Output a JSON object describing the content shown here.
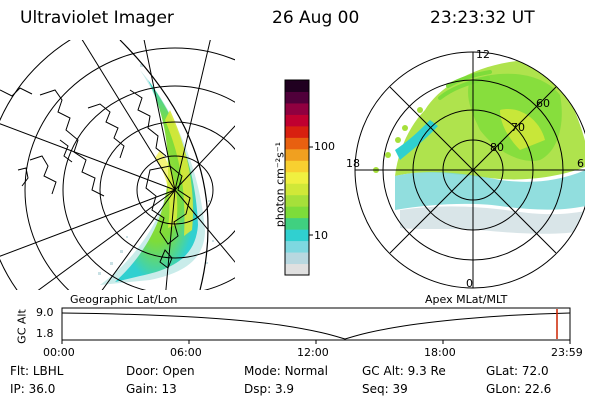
{
  "header": {
    "title": "Ultraviolet Imager",
    "date": "26 Aug 00",
    "time": "23:23:32 UT"
  },
  "left_panel": {
    "caption": "Geographic Lat/Lon"
  },
  "right_panel": {
    "caption": "Apex MLat/MLT",
    "mlt_labels": [
      "12",
      "18",
      "6",
      "0"
    ],
    "lat_labels": [
      "60",
      "70",
      "80"
    ]
  },
  "colorbar": {
    "unit_label": "photon cm⁻²s⁻¹",
    "tick_labels": [
      "100",
      "10"
    ],
    "colors": [
      "#e0e0e0",
      "#b8d8e0",
      "#7ed8e0",
      "#30d0d0",
      "#40d080",
      "#7ddc3a",
      "#a6e03a",
      "#d0e838",
      "#f0f040",
      "#f8d030",
      "#f0a020",
      "#e86010",
      "#d82010",
      "#c00030",
      "#900040",
      "#50003a",
      "#200020"
    ]
  },
  "timeline": {
    "y_axis_label": "GC Alt",
    "y_ticks": [
      "9.0",
      "1.8"
    ],
    "x_ticks": [
      "00:00",
      "06:00",
      "12:00",
      "18:00",
      "23:59"
    ],
    "marker_color": "#cc2200"
  },
  "info": {
    "row1": {
      "filter_label": "Flt:",
      "filter_value": "LBHL",
      "door_label": "Door:",
      "door_value": "Open",
      "mode_label": "Mode:",
      "mode_value": "Normal",
      "gcalt_label": "GC Alt:",
      "gcalt_value": "9.3 Re",
      "glat_label": "GLat:",
      "glat_value": "72.0"
    },
    "row2": {
      "ip_label": "IP:",
      "ip_value": "36.0",
      "gain_label": "Gain:",
      "gain_value": "13",
      "dsp_label": "Dsp:",
      "dsp_value": "3.9",
      "seq_label": "Seq:",
      "seq_value": "39",
      "glon_label": "GLon:",
      "glon_value": "22.6"
    }
  }
}
